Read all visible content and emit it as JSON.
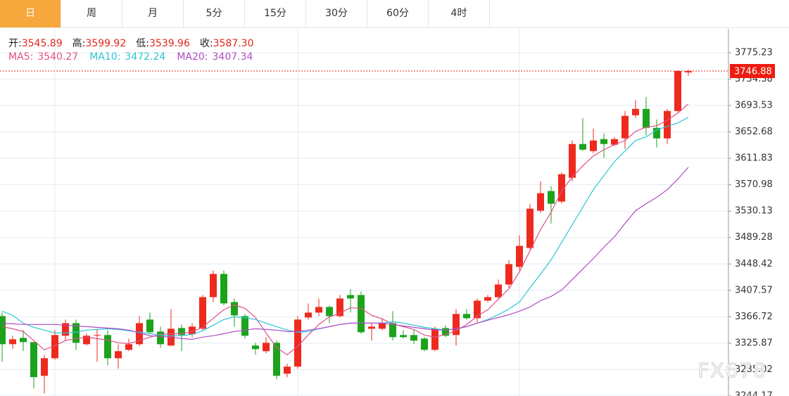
{
  "tabs": [
    "日",
    "周",
    "月",
    "5分",
    "15分",
    "30分",
    "60分",
    "4时"
  ],
  "active_tab": 0,
  "chart_data": {
    "type": "candlestick",
    "info": [
      {
        "label": "开:",
        "value": "3545.89"
      },
      {
        "label": "高:",
        "value": "3599.92"
      },
      {
        "label": "低:",
        "value": "3539.96"
      },
      {
        "label": "收:",
        "value": "3587.30"
      }
    ],
    "up_color": "#ee2a1e",
    "down_color": "#1ba31b",
    "open": [
      3367.8,
      3324.3,
      3334.1,
      3327.6,
      3275.4,
      3302.6,
      3337.4,
      3356.9,
      3324.3,
      3337.4,
      3338.5,
      3302.6,
      3315.6,
      3324.3,
      3362.4,
      3343.9,
      3322.2,
      3349.3,
      3339.6,
      3348.2,
      3397.1,
      3433.0,
      3389.5,
      3367.8,
      3322.2,
      3313.5,
      3326.5,
      3278.7,
      3289.6,
      3365.6,
      3373.2,
      3381.9,
      3367.8,
      3400.4,
      3400.4,
      3348.2,
      3348.2,
      3356.9,
      3338.5,
      3338.5,
      3333.0,
      3315.6,
      3349.3,
      3338.5,
      3371.1,
      3364.5,
      3391.7,
      3397.1,
      3416.7,
      3443.9,
      3473.2,
      3530.8,
      3561.2,
      3544.9,
      3581.8,
      3634.0,
      3623.1,
      3641.6,
      3632.9,
      3642.7,
      3678.5,
      3688.3,
      3659.0,
      3642.7,
      3685.1,
      3744.8
    ],
    "high": [
      3373.2,
      3337.4,
      3346.1,
      3327.6,
      3308.0,
      3346.1,
      3362.4,
      3362.4,
      3340.6,
      3348.2,
      3346.1,
      3324.3,
      3333.0,
      3367.8,
      3373.2,
      3351.5,
      3378.7,
      3354.8,
      3356.9,
      3400.4,
      3438.4,
      3438.4,
      3395.0,
      3371.1,
      3326.5,
      3335.2,
      3329.8,
      3293.9,
      3367.8,
      3387.4,
      3395.0,
      3384.1,
      3400.4,
      3409.1,
      3405.8,
      3356.9,
      3364.5,
      3375.4,
      3346.1,
      3346.1,
      3335.2,
      3351.5,
      3353.7,
      3378.7,
      3378.7,
      3395.0,
      3400.4,
      3424.3,
      3454.7,
      3492.7,
      3541.6,
      3576.4,
      3568.8,
      3590.5,
      3639.4,
      3674.2,
      3657.9,
      3650.3,
      3644.9,
      3685.1,
      3702.4,
      3706.8,
      3672.0,
      3688.3,
      3748.1,
      3749.2
    ],
    "low": [
      3297.2,
      3316.7,
      3313.5,
      3255.9,
      3248.3,
      3300.4,
      3329.8,
      3315.6,
      3322.2,
      3297.2,
      3291.7,
      3286.3,
      3313.5,
      3321.1,
      3340.6,
      3318.9,
      3321.1,
      3313.5,
      3335.2,
      3346.1,
      3389.5,
      3384.1,
      3351.5,
      3333.0,
      3308.0,
      3310.2,
      3270.0,
      3273.3,
      3286.3,
      3362.4,
      3367.8,
      3356.9,
      3365.6,
      3373.2,
      3340.6,
      3329.8,
      3346.1,
      3329.8,
      3333.0,
      3324.3,
      3313.5,
      3313.5,
      3335.2,
      3322.2,
      3362.4,
      3356.9,
      3389.5,
      3395.0,
      3411.3,
      3438.4,
      3471.0,
      3527.5,
      3511.2,
      3541.6,
      3576.4,
      3623.1,
      3619.9,
      3612.3,
      3630.7,
      3626.4,
      3674.2,
      3647.0,
      3628.6,
      3634.0,
      3682.9,
      3739.4
    ],
    "close": [
      3324.3,
      3331.9,
      3327.6,
      3273.3,
      3302.6,
      3338.5,
      3356.9,
      3326.5,
      3337.4,
      3338.5,
      3302.6,
      3313.5,
      3324.3,
      3356.9,
      3342.8,
      3324.3,
      3348.2,
      3338.5,
      3351.5,
      3397.1,
      3433.0,
      3387.4,
      3368.9,
      3337.4,
      3316.7,
      3326.5,
      3275.4,
      3289.6,
      3362.4,
      3373.2,
      3381.9,
      3367.8,
      3395.0,
      3395.0,
      3342.8,
      3351.5,
      3356.9,
      3335.2,
      3335.2,
      3329.8,
      3315.6,
      3348.2,
      3337.4,
      3371.1,
      3364.5,
      3391.7,
      3397.1,
      3416.7,
      3448.2,
      3476.4,
      3534.0,
      3557.9,
      3541.6,
      3587.3,
      3634.0,
      3625.3,
      3639.4,
      3634.0,
      3641.6,
      3677.5,
      3688.3,
      3659.0,
      3642.7,
      3685.1,
      3747.0,
      3746.88
    ],
    "series": [
      {
        "name": "MA5",
        "color": "#e0508a",
        "value_label": "3540.27",
        "values": [
          3351.5,
          3348.2,
          3343.9,
          3329.8,
          3315.6,
          3322.2,
          3329.8,
          3333.0,
          3335.2,
          3333.0,
          3330.8,
          3326.5,
          3325.4,
          3329.8,
          3335.2,
          3339.6,
          3340.6,
          3340.6,
          3343.9,
          3350.4,
          3364.5,
          3377.6,
          3385.2,
          3379.7,
          3365.6,
          3341.7,
          3318.9,
          3308.0,
          3321.1,
          3338.5,
          3354.8,
          3366.7,
          3372.1,
          3380.8,
          3379.7,
          3368.9,
          3363.4,
          3355.8,
          3351.5,
          3347.1,
          3338.5,
          3335.2,
          3339.6,
          3345.0,
          3354.8,
          3367.8,
          3377.6,
          3393.9,
          3410.1,
          3436.2,
          3468.8,
          3501.4,
          3528.6,
          3561.2,
          3582.9,
          3600.3,
          3615.5,
          3625.3,
          3632.9,
          3639.4,
          3653.5,
          3660.0,
          3662.2,
          3670.9,
          3681.8,
          3695.9
        ]
      },
      {
        "name": "MA10",
        "color": "#2ec4d6",
        "value_label": "3472.24",
        "values": [
          3375.4,
          3368.9,
          3356.9,
          3350.4,
          3346.1,
          3341.7,
          3341.7,
          3342.8,
          3346.1,
          3347.1,
          3348.2,
          3347.1,
          3345.0,
          3342.8,
          3340.6,
          3338.5,
          3337.4,
          3337.4,
          3339.6,
          3345.0,
          3353.7,
          3362.4,
          3366.7,
          3365.6,
          3362.4,
          3356.9,
          3351.5,
          3346.1,
          3342.8,
          3343.9,
          3348.2,
          3351.5,
          3354.8,
          3356.9,
          3356.9,
          3356.9,
          3356.9,
          3359.1,
          3356.9,
          3353.7,
          3350.4,
          3348.2,
          3346.1,
          3348.2,
          3351.5,
          3356.9,
          3362.4,
          3369.9,
          3378.7,
          3389.5,
          3411.3,
          3433.0,
          3454.7,
          3481.9,
          3509.0,
          3536.2,
          3563.3,
          3585.1,
          3606.8,
          3623.1,
          3639.4,
          3644.9,
          3655.7,
          3661.1,
          3666.6,
          3675.3
        ]
      },
      {
        "name": "MA20",
        "color": "#b24bc4",
        "value_label": "3407.34",
        "values": [
          3356.9,
          3355.8,
          3354.8,
          3354.8,
          3354.8,
          3354.8,
          3353.7,
          3352.6,
          3351.5,
          3350.4,
          3349.3,
          3348.2,
          3346.1,
          3341.7,
          3337.4,
          3336.3,
          3335.2,
          3333.0,
          3331.9,
          3335.2,
          3337.4,
          3340.6,
          3343.9,
          3346.1,
          3348.2,
          3347.1,
          3346.1,
          3343.9,
          3343.9,
          3346.1,
          3348.2,
          3351.5,
          3354.8,
          3356.9,
          3356.9,
          3356.9,
          3356.9,
          3354.8,
          3352.6,
          3350.4,
          3348.2,
          3346.1,
          3346.1,
          3348.2,
          3351.5,
          3356.9,
          3361.3,
          3365.6,
          3369.9,
          3375.4,
          3381.9,
          3391.7,
          3398.2,
          3408.0,
          3424.3,
          3440.6,
          3456.9,
          3474.3,
          3490.5,
          3511.2,
          3530.8,
          3541.6,
          3551.4,
          3563.3,
          3579.6,
          3598.1
        ]
      }
    ],
    "ylim": [
      3244.17,
      3812.16
    ],
    "yticks": [
      3244.17,
      3285.02,
      3325.87,
      3366.72,
      3407.57,
      3448.42,
      3489.28,
      3530.13,
      3570.98,
      3611.83,
      3652.68,
      3693.53,
      3734.38,
      3775.23
    ],
    "grid": true,
    "watermark": "FX678"
  }
}
